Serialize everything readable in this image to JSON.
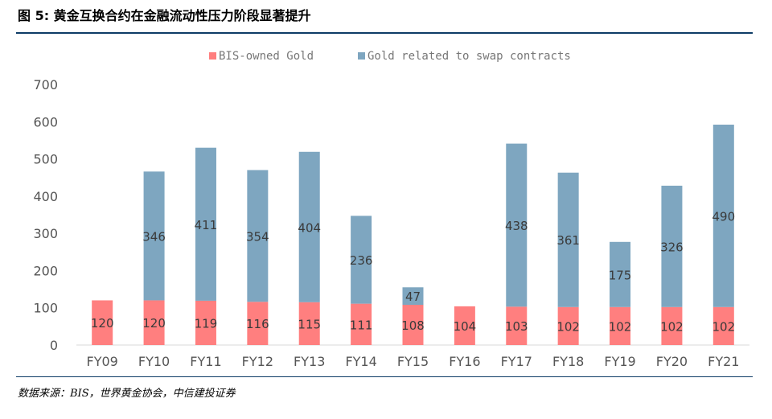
{
  "figure": {
    "title": "图 5: 黄金互换合约在金融流动性压力阶段显著提升",
    "source": "数据来源：BIS，世界黄金协会，中信建投证券"
  },
  "colors": {
    "bis": "#ff7f7f",
    "swap": "#7ea6c0",
    "axis": "#d9d9d9",
    "tick": "#555555",
    "label": "#3a3a3a",
    "rule": "#0d3b66"
  },
  "chart_data": {
    "type": "bar",
    "stacked": true,
    "categories": [
      "FY09",
      "FY10",
      "FY11",
      "FY12",
      "FY13",
      "FY14",
      "FY15",
      "FY16",
      "FY17",
      "FY18",
      "FY19",
      "FY20",
      "FY21"
    ],
    "series": [
      {
        "name": "BIS-owned Gold",
        "values": [
          120,
          120,
          119,
          116,
          115,
          111,
          108,
          104,
          103,
          102,
          102,
          102,
          102
        ]
      },
      {
        "name": "Gold related to swap contracts",
        "values": [
          0,
          346,
          411,
          354,
          404,
          236,
          47,
          0,
          438,
          361,
          175,
          326,
          490
        ]
      }
    ],
    "ylim": [
      0,
      700
    ],
    "yticks": [
      0,
      100,
      200,
      300,
      400,
      500,
      600,
      700
    ],
    "grid": false,
    "legend": "top"
  }
}
